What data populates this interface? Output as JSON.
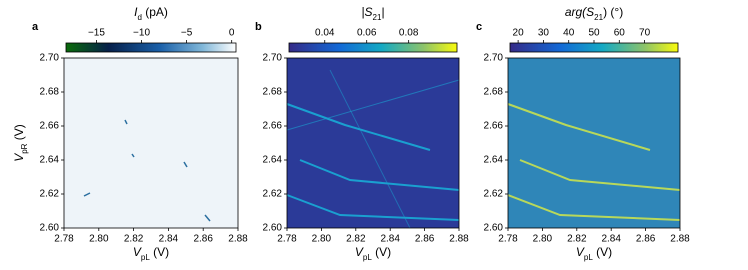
{
  "chart_data": [
    {
      "type": "heatmap",
      "panel": "a",
      "colorbar_label": [
        "I",
        "d",
        " (pA)"
      ],
      "clim": [
        -18.6,
        0.7
      ],
      "cticks": [
        {
          "value": -15,
          "label": "−15"
        },
        {
          "value": -10,
          "label": "−10"
        },
        {
          "value": -5,
          "label": "−5"
        },
        0
      ],
      "xlabel": [
        "V",
        "pL",
        " (V)"
      ],
      "ylabel": [
        "V",
        "pR",
        " (V)"
      ],
      "xlim": [
        2.78,
        2.88
      ],
      "xticks": [
        2.78,
        {
          "value": 2.8,
          "label": "2.80"
        },
        2.82,
        2.84,
        2.86,
        2.88
      ],
      "ylim": [
        2.6,
        2.7
      ],
      "yticks": [
        {
          "value": 2.6,
          "label": "2.60"
        },
        2.62,
        2.64,
        2.66,
        2.68,
        {
          "value": 2.7,
          "label": "2.70"
        }
      ]
    },
    {
      "type": "heatmap",
      "panel": "b",
      "colorbar_label": [
        "|S",
        "21",
        "|"
      ],
      "clim": [
        0.022,
        0.104
      ],
      "cticks": [
        0.04,
        0.06,
        0.08
      ],
      "xlabel": [
        "V",
        "pL",
        " (V)"
      ],
      "xlim": [
        2.78,
        2.88
      ],
      "xticks": [
        2.78,
        {
          "value": 2.8,
          "label": "2.80"
        },
        2.82,
        2.84,
        2.86,
        2.88
      ],
      "ylim": [
        2.6,
        2.7
      ],
      "yticks": [
        {
          "value": 2.6,
          "label": "2.60"
        },
        2.62,
        2.64,
        2.66,
        2.68,
        {
          "value": 2.7,
          "label": "2.70"
        }
      ]
    },
    {
      "type": "heatmap",
      "panel": "c",
      "colorbar_label": [
        "arg(S",
        "21",
        ") (°)"
      ],
      "clim": [
        16,
        84
      ],
      "cticks": [
        20,
        30,
        40,
        50,
        60,
        70
      ],
      "xlabel": [
        "V",
        "pL",
        " (V)"
      ],
      "xlim": [
        2.78,
        2.88
      ],
      "xticks": [
        2.78,
        {
          "value": 2.8,
          "label": "2.80"
        },
        2.82,
        2.84,
        2.86,
        2.88
      ],
      "ylim": [
        2.6,
        2.7
      ],
      "yticks": [
        {
          "value": 2.6,
          "label": "2.60"
        },
        2.62,
        2.64,
        2.66,
        2.68,
        {
          "value": 2.7,
          "label": "2.70"
        }
      ]
    }
  ]
}
